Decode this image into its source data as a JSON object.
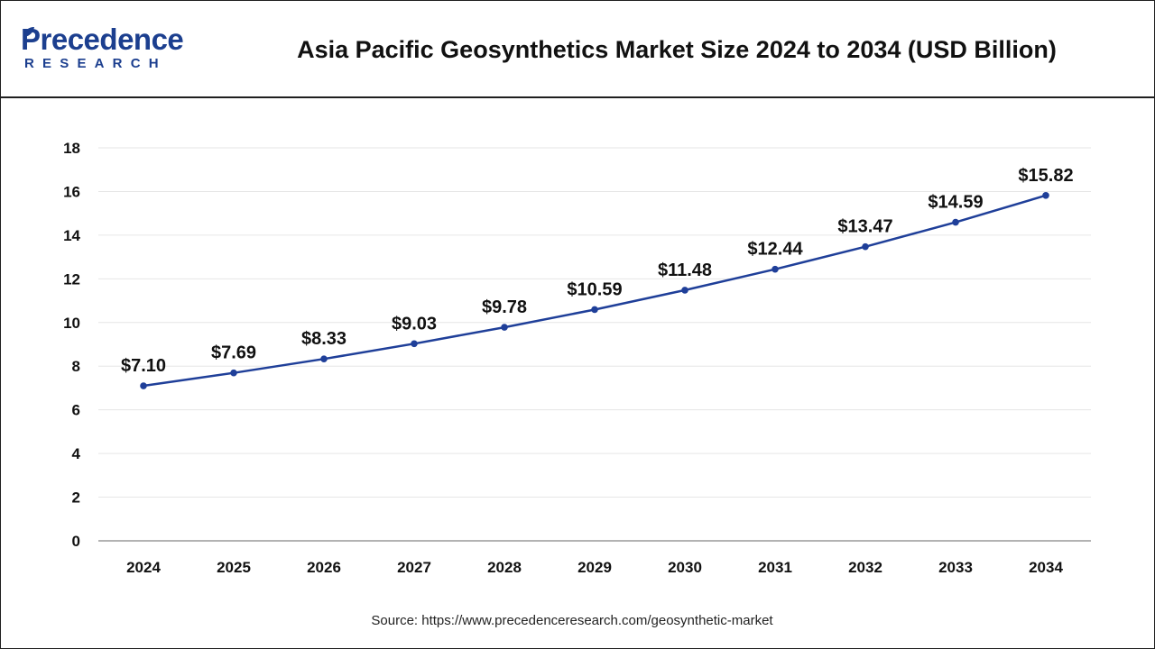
{
  "header": {
    "logo_top": "Precedence",
    "logo_bottom": "RESEARCH",
    "title": "Asia Pacific Geosynthetics Market Size 2024 to 2034 (USD Billion)"
  },
  "source": "Source: https://www.precedenceresearch.com/geosynthetic-market",
  "colors": {
    "line": "#1f3f99",
    "brand": "#1c3f8f",
    "grid": "#e6e6e6"
  },
  "icons": {
    "logo_mark": "leaf-icon"
  },
  "chart_data": {
    "type": "line",
    "title": "Asia Pacific Geosynthetics Market Size 2024 to 2034 (USD Billion)",
    "categories": [
      "2024",
      "2025",
      "2026",
      "2027",
      "2028",
      "2029",
      "2030",
      "2031",
      "2032",
      "2033",
      "2034"
    ],
    "series": [
      {
        "values": [
          7.1,
          7.69,
          8.33,
          9.03,
          9.78,
          10.59,
          11.48,
          12.44,
          13.47,
          14.59,
          15.82
        ]
      }
    ],
    "data_labels": [
      "$7.10",
      "$7.69",
      "$8.33",
      "$9.03",
      "$9.78",
      "$10.59",
      "$11.48",
      "$12.44",
      "$13.47",
      "$14.59",
      "$15.82"
    ],
    "ylim": [
      0,
      18
    ],
    "yticks": [
      "0",
      "2",
      "4",
      "6",
      "8",
      "10",
      "12",
      "14",
      "16",
      "18"
    ],
    "grid": true,
    "legend": "none"
  }
}
